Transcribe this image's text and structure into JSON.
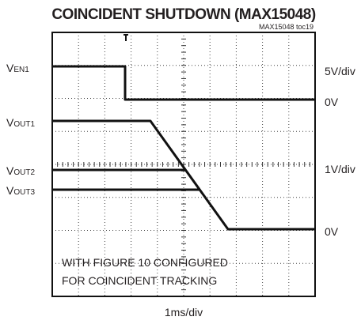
{
  "title": "COINCIDENT SHUTDOWN (MAX15048)",
  "figure_id": "MAX15048 toc19",
  "channels": [
    {
      "symbol": "V",
      "sub": "EN1"
    },
    {
      "symbol": "V",
      "sub": "OUT1"
    },
    {
      "symbol": "V",
      "sub": "OUT2"
    },
    {
      "symbol": "V",
      "sub": "OUT3"
    }
  ],
  "right_labels": [
    "5V/div",
    "0V",
    "1V/div",
    "0V"
  ],
  "note": [
    "WITH FIGURE 10 CONFIGURED",
    "FOR COINCIDENT TRACKING"
  ],
  "x_scale": "1ms/div"
}
